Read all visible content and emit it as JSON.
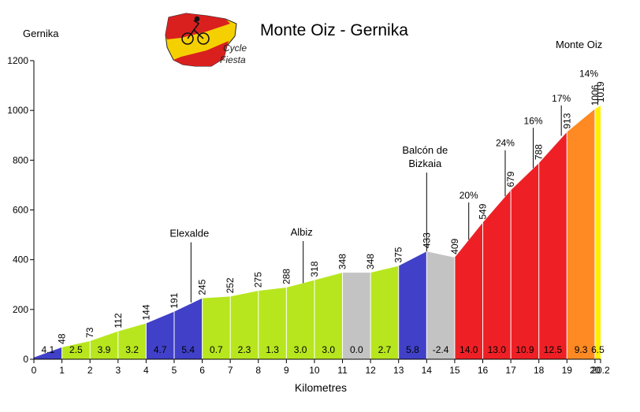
{
  "chart_data": {
    "type": "area",
    "title": "Monte Oiz - Gernika",
    "xlabel": "Kilometres",
    "ylabel": "",
    "xlim": [
      0,
      20.2
    ],
    "ylim": [
      0,
      1200
    ],
    "x_ticks": [
      "0",
      "1",
      "2",
      "3",
      "4",
      "5",
      "6",
      "7",
      "8",
      "9",
      "10",
      "11",
      "12",
      "13",
      "14",
      "15",
      "16",
      "17",
      "18",
      "19",
      "20",
      "20.2"
    ],
    "y_ticks": [
      "0",
      "200",
      "400",
      "600",
      "800",
      "1000",
      "1200"
    ],
    "start_label": "Gernika",
    "end_label": "Monte Oiz",
    "logo": {
      "line1": "Cycle",
      "line2": "Fiesta"
    },
    "segments": [
      {
        "start": 0,
        "end": 1,
        "grade": "4.1",
        "elev_start": 7,
        "elev_end": 48,
        "color": "#4040c8"
      },
      {
        "start": 1,
        "end": 2,
        "grade": "2.5",
        "elev_start": 48,
        "elev_end": 73,
        "color": "#b7e61e"
      },
      {
        "start": 2,
        "end": 3,
        "grade": "3.9",
        "elev_start": 73,
        "elev_end": 112,
        "color": "#b7e61e"
      },
      {
        "start": 3,
        "end": 4,
        "grade": "3.2",
        "elev_start": 112,
        "elev_end": 144,
        "color": "#b7e61e"
      },
      {
        "start": 4,
        "end": 5,
        "grade": "4.7",
        "elev_start": 144,
        "elev_end": 191,
        "color": "#4040c8"
      },
      {
        "start": 5,
        "end": 6,
        "grade": "5.4",
        "elev_start": 191,
        "elev_end": 245,
        "color": "#4040c8"
      },
      {
        "start": 6,
        "end": 7,
        "grade": "0.7",
        "elev_start": 245,
        "elev_end": 252,
        "color": "#b7e61e"
      },
      {
        "start": 7,
        "end": 8,
        "grade": "2.3",
        "elev_start": 252,
        "elev_end": 275,
        "color": "#b7e61e"
      },
      {
        "start": 8,
        "end": 9,
        "grade": "1.3",
        "elev_start": 275,
        "elev_end": 288,
        "color": "#b7e61e"
      },
      {
        "start": 9,
        "end": 10,
        "grade": "3.0",
        "elev_start": 288,
        "elev_end": 318,
        "color": "#b7e61e"
      },
      {
        "start": 10,
        "end": 11,
        "grade": "3.0",
        "elev_start": 318,
        "elev_end": 348,
        "color": "#b7e61e"
      },
      {
        "start": 11,
        "end": 12,
        "grade": "0.0",
        "elev_start": 348,
        "elev_end": 348,
        "color": "#c3c3c3"
      },
      {
        "start": 12,
        "end": 13,
        "grade": "2.7",
        "elev_start": 348,
        "elev_end": 375,
        "color": "#b7e61e"
      },
      {
        "start": 13,
        "end": 14,
        "grade": "5.8",
        "elev_start": 375,
        "elev_end": 433,
        "color": "#4040c8"
      },
      {
        "start": 14,
        "end": 15,
        "grade": "-2.4",
        "elev_start": 433,
        "elev_end": 409,
        "color": "#c3c3c3"
      },
      {
        "start": 15,
        "end": 16,
        "grade": "14.0",
        "elev_start": 409,
        "elev_end": 549,
        "color": "#ee2025"
      },
      {
        "start": 16,
        "end": 17,
        "grade": "13.0",
        "elev_start": 549,
        "elev_end": 679,
        "color": "#ee2025"
      },
      {
        "start": 17,
        "end": 18,
        "grade": "10.9",
        "elev_start": 679,
        "elev_end": 788,
        "color": "#ee2025"
      },
      {
        "start": 18,
        "end": 19,
        "grade": "12.5",
        "elev_start": 788,
        "elev_end": 913,
        "color": "#ee2025"
      },
      {
        "start": 19,
        "end": 20,
        "grade": "9.3",
        "elev_start": 913,
        "elev_end": 1006,
        "color": "#ff8a23"
      },
      {
        "start": 20,
        "end": 20.2,
        "grade": "6.5",
        "elev_start": 1006,
        "elev_end": 1019,
        "color": "#ffee00"
      }
    ],
    "elevation_labels": [
      {
        "km": 1,
        "value": "48"
      },
      {
        "km": 2,
        "value": "73"
      },
      {
        "km": 3,
        "value": "112"
      },
      {
        "km": 4,
        "value": "144"
      },
      {
        "km": 5,
        "value": "191"
      },
      {
        "km": 6,
        "value": "245"
      },
      {
        "km": 7,
        "value": "252"
      },
      {
        "km": 8,
        "value": "275"
      },
      {
        "km": 9,
        "value": "288"
      },
      {
        "km": 10,
        "value": "318"
      },
      {
        "km": 11,
        "value": "348"
      },
      {
        "km": 12,
        "value": "348"
      },
      {
        "km": 13,
        "value": "375"
      },
      {
        "km": 14,
        "value": "433"
      },
      {
        "km": 15,
        "value": "409"
      },
      {
        "km": 16,
        "value": "549"
      },
      {
        "km": 17,
        "value": "679"
      },
      {
        "km": 18,
        "value": "788"
      },
      {
        "km": 19,
        "value": "913"
      },
      {
        "km": 20,
        "value": "1006"
      },
      {
        "km": 20.2,
        "value": "1019"
      }
    ],
    "places": [
      {
        "name": "Elexalde",
        "km": 5.6,
        "elev": 228,
        "top_elev": 470
      },
      {
        "name": "Albiz",
        "km": 9.6,
        "elev": 306,
        "top_elev": 475
      },
      {
        "name": "Balcón de|Bizkaia",
        "km": 14.0,
        "elev": 433,
        "top_elev": 750
      }
    ],
    "max_gradients": [
      {
        "label": "20%",
        "km": 15.5,
        "elev": 480,
        "top_elev": 630
      },
      {
        "label": "24%",
        "km": 16.8,
        "elev": 655,
        "top_elev": 840
      },
      {
        "label": "16%",
        "km": 17.8,
        "elev": 768,
        "top_elev": 930
      },
      {
        "label": "17%",
        "km": 18.8,
        "elev": 898,
        "top_elev": 1020
      },
      {
        "label": "14%",
        "km": 20.6,
        "elev": 1040,
        "top_elev": 1120
      }
    ]
  }
}
